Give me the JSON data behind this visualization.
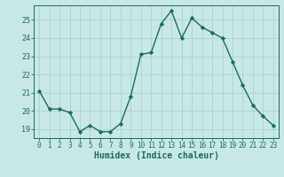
{
  "x": [
    0,
    1,
    2,
    3,
    4,
    5,
    6,
    7,
    8,
    9,
    10,
    11,
    12,
    13,
    14,
    15,
    16,
    17,
    18,
    19,
    20,
    21,
    22,
    23
  ],
  "y": [
    21.1,
    20.1,
    20.1,
    19.9,
    18.85,
    19.2,
    18.85,
    18.85,
    19.3,
    20.8,
    23.1,
    23.2,
    24.8,
    25.5,
    24.0,
    25.1,
    24.6,
    24.3,
    24.0,
    22.7,
    21.4,
    20.3,
    19.7,
    19.2
  ],
  "line_color": "#1a6b5a",
  "bg_color": "#c8e8e5",
  "grid_color": "#b0d0cc",
  "text_color": "#1a6b5a",
  "xlabel": "Humidex (Indice chaleur)",
  "ylim": [
    18.5,
    25.8
  ],
  "yticks": [
    19,
    20,
    21,
    22,
    23,
    24,
    25
  ],
  "marker": "D",
  "markersize": 2.2,
  "linewidth": 1.0,
  "tick_fontsize": 5.5,
  "xlabel_fontsize": 7.0
}
